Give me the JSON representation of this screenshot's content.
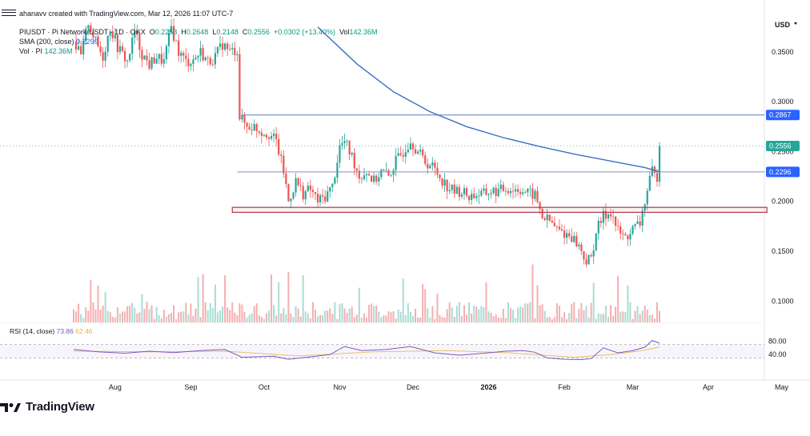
{
  "header": {
    "created_by": "ahanavv created with TradingView.com, Mar 12, 2026 11:07 UTC-7",
    "symbol": "PIUSDT · Pi Network/USDT · 1D · OKX",
    "open_label": "O",
    "open": "0.2253",
    "high_label": "H",
    "high": "0.2648",
    "low_label": "L",
    "low": "0.2148",
    "close_label": "C",
    "close": "0.2556",
    "change": "+0.0302 (+13.40%)",
    "vol_label": "Vol",
    "vol": "142.36M",
    "sma_label": "SMA (200, close)",
    "sma": "0.2296",
    "vol_pi_label": "Vol · PI",
    "vol_pi": "142.36M"
  },
  "rsi_header": {
    "label": "RSI (14, close)",
    "rsi": "73.86",
    "rsi_ma": "62.46"
  },
  "currency": "USD",
  "logo_text": "TradingView",
  "chart_data": {
    "type": "candlestick",
    "y_axis": {
      "min": 0.085,
      "max": 0.39,
      "ticks": [
        "0.3500",
        "0.3000",
        "0.2500",
        "0.2000",
        "0.1500",
        "0.1000"
      ]
    },
    "price_labels": [
      {
        "value": 0.2867,
        "text": "0.2867",
        "color": "#2962ff"
      },
      {
        "value": 0.2556,
        "text": "0.2556",
        "color": "#26a69a"
      },
      {
        "value": 0.2296,
        "text": "0.2296",
        "color": "#2962ff"
      }
    ],
    "x_axis": {
      "start": "2025-07-15",
      "labels": [
        {
          "date": "2025-08-01",
          "text": "Aug"
        },
        {
          "date": "2025-09-01",
          "text": "Sep"
        },
        {
          "date": "2025-10-01",
          "text": "Oct"
        },
        {
          "date": "2025-11-01",
          "text": "Nov"
        },
        {
          "date": "2025-12-01",
          "text": "Dec"
        },
        {
          "date": "2026-01-01",
          "text": "2026"
        },
        {
          "date": "2026-02-01",
          "text": "Feb"
        },
        {
          "date": "2026-03-01",
          "text": "Mar"
        },
        {
          "date": "2026-04-01",
          "text": "Apr"
        },
        {
          "date": "2026-05-01",
          "text": "May"
        }
      ]
    },
    "price_path": [
      [
        "2025-07-15",
        0.36
      ],
      [
        "2025-07-18",
        0.345
      ],
      [
        "2025-07-21",
        0.38
      ],
      [
        "2025-07-24",
        0.36
      ],
      [
        "2025-07-27",
        0.345
      ],
      [
        "2025-07-30",
        0.375
      ],
      [
        "2025-08-02",
        0.355
      ],
      [
        "2025-08-06",
        0.34
      ],
      [
        "2025-08-09",
        0.37
      ],
      [
        "2025-08-12",
        0.348
      ],
      [
        "2025-08-15",
        0.337
      ],
      [
        "2025-08-18",
        0.345
      ],
      [
        "2025-08-21",
        0.34
      ],
      [
        "2025-08-24",
        0.375
      ],
      [
        "2025-08-27",
        0.35
      ],
      [
        "2025-08-30",
        0.34
      ],
      [
        "2025-09-02",
        0.342
      ],
      [
        "2025-09-05",
        0.35
      ],
      [
        "2025-09-08",
        0.34
      ],
      [
        "2025-09-11",
        0.345
      ],
      [
        "2025-09-14",
        0.358
      ],
      [
        "2025-09-17",
        0.35
      ],
      [
        "2025-09-20",
        0.352
      ],
      [
        "2025-09-21",
        0.285
      ],
      [
        "2025-09-24",
        0.275
      ],
      [
        "2025-09-27",
        0.275
      ],
      [
        "2025-09-30",
        0.27
      ],
      [
        "2025-10-03",
        0.268
      ],
      [
        "2025-10-06",
        0.26
      ],
      [
        "2025-10-09",
        0.23
      ],
      [
        "2025-10-11",
        0.2
      ],
      [
        "2025-10-14",
        0.22
      ],
      [
        "2025-10-17",
        0.208
      ],
      [
        "2025-10-20",
        0.212
      ],
      [
        "2025-10-23",
        0.2
      ],
      [
        "2025-10-26",
        0.205
      ],
      [
        "2025-10-29",
        0.215
      ],
      [
        "2025-11-01",
        0.255
      ],
      [
        "2025-11-03",
        0.26
      ],
      [
        "2025-11-06",
        0.245
      ],
      [
        "2025-11-09",
        0.225
      ],
      [
        "2025-11-12",
        0.23
      ],
      [
        "2025-11-15",
        0.22
      ],
      [
        "2025-11-18",
        0.23
      ],
      [
        "2025-11-21",
        0.225
      ],
      [
        "2025-11-24",
        0.24
      ],
      [
        "2025-11-27",
        0.25
      ],
      [
        "2025-11-30",
        0.262
      ],
      [
        "2025-12-03",
        0.25
      ],
      [
        "2025-12-06",
        0.24
      ],
      [
        "2025-12-09",
        0.235
      ],
      [
        "2025-12-12",
        0.225
      ],
      [
        "2025-12-15",
        0.215
      ],
      [
        "2025-12-18",
        0.21
      ],
      [
        "2025-12-21",
        0.21
      ],
      [
        "2025-12-24",
        0.205
      ],
      [
        "2025-12-27",
        0.207
      ],
      [
        "2025-12-30",
        0.207
      ],
      [
        "2026-01-02",
        0.21
      ],
      [
        "2026-01-05",
        0.21
      ],
      [
        "2026-01-08",
        0.213
      ],
      [
        "2026-01-11",
        0.212
      ],
      [
        "2026-01-14",
        0.212
      ],
      [
        "2026-01-17",
        0.208
      ],
      [
        "2026-01-20",
        0.206
      ],
      [
        "2026-01-23",
        0.185
      ],
      [
        "2026-01-26",
        0.18
      ],
      [
        "2026-01-29",
        0.172
      ],
      [
        "2026-02-01",
        0.168
      ],
      [
        "2026-02-04",
        0.165
      ],
      [
        "2026-02-07",
        0.155
      ],
      [
        "2026-02-10",
        0.14
      ],
      [
        "2026-02-12",
        0.142
      ],
      [
        "2026-02-14",
        0.17
      ],
      [
        "2026-02-17",
        0.185
      ],
      [
        "2026-02-20",
        0.19
      ],
      [
        "2026-02-23",
        0.17
      ],
      [
        "2026-02-26",
        0.163
      ],
      [
        "2026-03-01",
        0.172
      ],
      [
        "2026-03-04",
        0.178
      ],
      [
        "2026-03-06",
        0.2
      ],
      [
        "2026-03-09",
        0.23
      ],
      [
        "2026-03-10",
        0.225
      ],
      [
        "2026-03-11",
        0.2253
      ],
      [
        "2026-03-12",
        0.2556
      ]
    ],
    "sma_200": [
      [
        "2025-10-23",
        0.375
      ],
      [
        "2025-11-08",
        0.338
      ],
      [
        "2025-11-23",
        0.31
      ],
      [
        "2025-12-08",
        0.29
      ],
      [
        "2025-12-23",
        0.275
      ],
      [
        "2026-01-07",
        0.264
      ],
      [
        "2026-01-22",
        0.255
      ],
      [
        "2026-02-06",
        0.247
      ],
      [
        "2026-02-21",
        0.24
      ],
      [
        "2026-03-06",
        0.234
      ],
      [
        "2026-03-12",
        0.2296
      ]
    ],
    "horizontal_lines": [
      {
        "value": 0.2867,
        "from": "2025-09-22",
        "to": "2026-05-20",
        "color": "#5b7fc4"
      },
      {
        "value": 0.2296,
        "from": "2025-09-20",
        "to": "2026-05-20",
        "color": "#8b8fb8"
      }
    ],
    "support_zone": {
      "from": "2025-09-18",
      "to": "2026-04-25",
      "top": 0.194,
      "bottom": 0.189,
      "color": "#b03a4a"
    },
    "rsi": {
      "range": [
        0,
        100
      ],
      "levels": [
        {
          "value": 80,
          "text": "80.00"
        },
        {
          "value": 40,
          "text": "40.00"
        }
      ],
      "band": [
        70,
        30
      ],
      "path": [
        [
          "2025-07-15",
          55
        ],
        [
          "2025-07-25",
          48
        ],
        [
          "2025-08-05",
          44
        ],
        [
          "2025-08-15",
          50
        ],
        [
          "2025-08-25",
          46
        ],
        [
          "2025-09-05",
          52
        ],
        [
          "2025-09-15",
          55
        ],
        [
          "2025-09-22",
          32
        ],
        [
          "2025-10-05",
          35
        ],
        [
          "2025-10-11",
          26
        ],
        [
          "2025-10-20",
          33
        ],
        [
          "2025-10-28",
          40
        ],
        [
          "2025-11-03",
          64
        ],
        [
          "2025-11-10",
          52
        ],
        [
          "2025-11-20",
          55
        ],
        [
          "2025-11-30",
          64
        ],
        [
          "2025-12-10",
          45
        ],
        [
          "2025-12-20",
          38
        ],
        [
          "2025-12-30",
          44
        ],
        [
          "2026-01-08",
          50
        ],
        [
          "2026-01-15",
          52
        ],
        [
          "2026-01-20",
          47
        ],
        [
          "2026-01-25",
          30
        ],
        [
          "2026-02-01",
          26
        ],
        [
          "2026-02-08",
          25
        ],
        [
          "2026-02-12",
          28
        ],
        [
          "2026-02-17",
          60
        ],
        [
          "2026-02-23",
          45
        ],
        [
          "2026-03-01",
          52
        ],
        [
          "2026-03-06",
          62
        ],
        [
          "2026-03-09",
          82
        ],
        [
          "2026-03-12",
          73.86
        ]
      ],
      "ma_path": [
        [
          "2025-07-15",
          50
        ],
        [
          "2025-08-15",
          48
        ],
        [
          "2025-09-15",
          50
        ],
        [
          "2025-10-15",
          36
        ],
        [
          "2025-11-15",
          48
        ],
        [
          "2025-12-15",
          52
        ],
        [
          "2026-01-10",
          45
        ],
        [
          "2026-02-05",
          32
        ],
        [
          "2026-02-20",
          40
        ],
        [
          "2026-03-05",
          52
        ],
        [
          "2026-03-12",
          62.46
        ]
      ]
    }
  }
}
